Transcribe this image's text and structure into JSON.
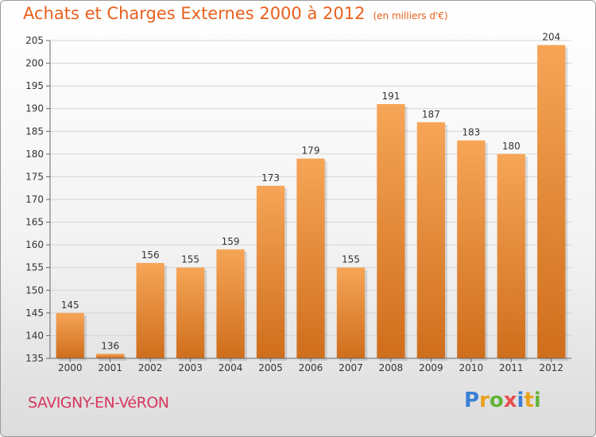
{
  "title": "Achats et Charges Externes 2000 à 2012",
  "subtitle": "(en milliers d'€)",
  "place": "SAVIGNY-EN-VéRON",
  "logo": {
    "letters": [
      "P",
      "r",
      "o",
      "x",
      "i",
      "t",
      "i"
    ],
    "colors": [
      "#3a7fd5",
      "#e8a21c",
      "#63b53a",
      "#e84e4e",
      "#3a7fd5",
      "#e8a21c",
      "#63b53a"
    ]
  },
  "colors": {
    "bar_top": "#f6a557",
    "bar_bottom": "#cf6e1c",
    "title": "#e8601c",
    "place": "#d7385f"
  },
  "chart_data": {
    "type": "bar",
    "categories": [
      "2000",
      "2001",
      "2002",
      "2003",
      "2004",
      "2005",
      "2006",
      "2007",
      "2008",
      "2009",
      "2010",
      "2011",
      "2012"
    ],
    "values": [
      145,
      136,
      156,
      155,
      159,
      173,
      179,
      155,
      191,
      187,
      183,
      180,
      204
    ],
    "title": "Achats et Charges Externes 2000 à 2012",
    "xlabel": "",
    "ylabel": "",
    "ylim": [
      135,
      205
    ],
    "yticks": [
      135,
      140,
      145,
      150,
      155,
      160,
      165,
      170,
      175,
      180,
      185,
      190,
      195,
      200,
      205
    ],
    "grid": true,
    "data_labels": true
  }
}
